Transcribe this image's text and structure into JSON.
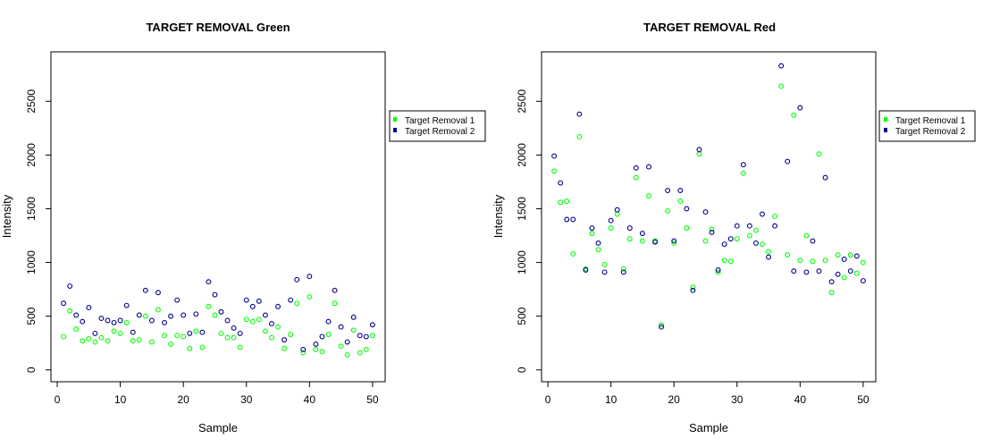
{
  "chart_data": [
    {
      "type": "scatter",
      "title": "TARGET REMOVAL Green",
      "xlabel": "Sample",
      "ylabel": "Intensity",
      "xlim": [
        -1,
        52
      ],
      "ylim": [
        -110,
        2960
      ],
      "xticks": [
        0,
        10,
        20,
        30,
        40,
        50
      ],
      "yticks": [
        0,
        500,
        1000,
        1500,
        2000,
        2500
      ],
      "legend_position": "right-outside",
      "series": [
        {
          "name": "Target Removal 1",
          "color": "#00ff00",
          "x": [
            1,
            2,
            3,
            4,
            5,
            6,
            7,
            8,
            9,
            10,
            11,
            12,
            13,
            14,
            15,
            16,
            17,
            18,
            19,
            20,
            21,
            22,
            23,
            24,
            25,
            26,
            27,
            28,
            29,
            30,
            31,
            32,
            33,
            34,
            35,
            36,
            37,
            38,
            39,
            40,
            41,
            42,
            43,
            44,
            45,
            46,
            47,
            48,
            49,
            50
          ],
          "values": [
            310,
            550,
            380,
            270,
            290,
            260,
            300,
            270,
            360,
            340,
            440,
            270,
            280,
            500,
            260,
            560,
            320,
            240,
            320,
            310,
            200,
            360,
            210,
            590,
            510,
            340,
            300,
            300,
            210,
            470,
            450,
            470,
            360,
            300,
            400,
            200,
            330,
            620,
            160,
            680,
            190,
            170,
            330,
            620,
            220,
            140,
            370,
            160,
            190,
            320
          ]
        },
        {
          "name": "Target Removal 2",
          "color": "#00008b",
          "x": [
            1,
            2,
            3,
            4,
            5,
            6,
            7,
            8,
            9,
            10,
            11,
            12,
            13,
            14,
            15,
            16,
            17,
            18,
            19,
            20,
            21,
            22,
            23,
            24,
            25,
            26,
            27,
            28,
            29,
            30,
            31,
            32,
            33,
            34,
            35,
            36,
            37,
            38,
            39,
            40,
            41,
            42,
            43,
            44,
            45,
            46,
            47,
            48,
            49,
            50
          ],
          "values": [
            620,
            780,
            510,
            450,
            580,
            340,
            480,
            460,
            440,
            460,
            600,
            350,
            510,
            740,
            460,
            720,
            440,
            500,
            650,
            510,
            340,
            520,
            350,
            820,
            700,
            540,
            460,
            390,
            340,
            650,
            590,
            640,
            510,
            430,
            590,
            280,
            650,
            840,
            190,
            870,
            240,
            310,
            450,
            740,
            400,
            260,
            490,
            320,
            310,
            420
          ]
        }
      ]
    },
    {
      "type": "scatter",
      "title": "TARGET REMOVAL Red",
      "xlabel": "Sample",
      "ylabel": "Intensity",
      "xlim": [
        -1,
        52
      ],
      "ylim": [
        -110,
        2960
      ],
      "xticks": [
        0,
        10,
        20,
        30,
        40,
        50
      ],
      "yticks": [
        0,
        500,
        1000,
        1500,
        2000,
        2500
      ],
      "legend_position": "right-outside",
      "series": [
        {
          "name": "Target Removal 1",
          "color": "#00ff00",
          "x": [
            1,
            2,
            3,
            4,
            5,
            6,
            7,
            8,
            9,
            10,
            11,
            12,
            13,
            14,
            15,
            16,
            17,
            18,
            19,
            20,
            21,
            22,
            23,
            24,
            25,
            26,
            27,
            28,
            29,
            30,
            31,
            32,
            33,
            34,
            35,
            36,
            37,
            38,
            39,
            40,
            41,
            42,
            43,
            44,
            45,
            46,
            47,
            48,
            49,
            50
          ],
          "values": [
            1850,
            1560,
            1570,
            1080,
            2170,
            940,
            1270,
            1120,
            980,
            1320,
            1450,
            940,
            1220,
            1790,
            1200,
            1620,
            1200,
            420,
            1480,
            1180,
            1570,
            1320,
            770,
            2010,
            1200,
            1310,
            910,
            1020,
            1010,
            1220,
            1830,
            1250,
            1300,
            1170,
            1100,
            1430,
            2640,
            1070,
            2370,
            1020,
            1250,
            1010,
            2010,
            1020,
            720,
            1070,
            860,
            1070,
            900,
            1000
          ]
        },
        {
          "name": "Target Removal 2",
          "color": "#00008b",
          "x": [
            1,
            2,
            3,
            4,
            5,
            6,
            7,
            8,
            9,
            10,
            11,
            12,
            13,
            14,
            15,
            16,
            17,
            18,
            19,
            20,
            21,
            22,
            23,
            24,
            25,
            26,
            27,
            28,
            29,
            30,
            31,
            32,
            33,
            34,
            35,
            36,
            37,
            38,
            39,
            40,
            41,
            42,
            43,
            44,
            45,
            46,
            47,
            48,
            49,
            50
          ],
          "values": [
            1990,
            1740,
            1400,
            1400,
            2380,
            930,
            1320,
            1180,
            910,
            1390,
            1490,
            910,
            1320,
            1880,
            1270,
            1890,
            1190,
            400,
            1670,
            1200,
            1670,
            1500,
            740,
            2050,
            1470,
            1280,
            930,
            1170,
            1220,
            1340,
            1910,
            1340,
            1180,
            1450,
            1050,
            1340,
            2830,
            1940,
            920,
            2440,
            910,
            1200,
            920,
            1790,
            820,
            890,
            1030,
            920,
            1060,
            830
          ]
        }
      ]
    }
  ]
}
